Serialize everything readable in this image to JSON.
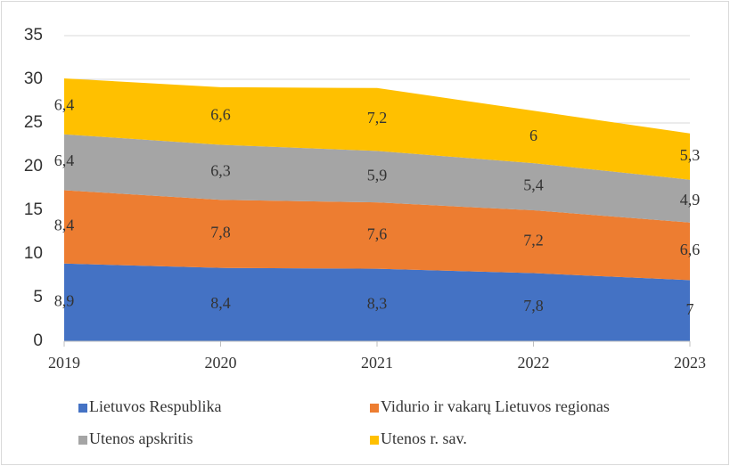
{
  "chart_data": {
    "type": "stacked-area",
    "categories": [
      "2019",
      "2020",
      "2021",
      "2022",
      "2023"
    ],
    "series": [
      {
        "name": "Lietuvos Respublika",
        "color": "#4472c4",
        "values": [
          8.9,
          8.4,
          8.3,
          7.8,
          7
        ],
        "value_labels": [
          "8,9",
          "8,4",
          "8,3",
          "7,8",
          "7"
        ]
      },
      {
        "name": "Vidurio ir vakarų Lietuvos regionas",
        "color": "#ed7d31",
        "values": [
          8.4,
          7.8,
          7.6,
          7.2,
          6.6
        ],
        "value_labels": [
          "8,4",
          "7,8",
          "7,6",
          "7,2",
          "6,6"
        ]
      },
      {
        "name": "Utenos apskritis",
        "color": "#a5a5a5",
        "values": [
          6.4,
          6.3,
          5.9,
          5.4,
          4.9
        ],
        "value_labels": [
          "6,4",
          "6,3",
          "5,9",
          "5,4",
          "4,9"
        ]
      },
      {
        "name": "Utenos r. sav.",
        "color": "#ffc000",
        "values": [
          6.4,
          6.6,
          7.2,
          6,
          5.3
        ],
        "value_labels": [
          "6,4",
          "6,6",
          "7,2",
          "6",
          "5,3"
        ]
      }
    ],
    "ylim": [
      0,
      35
    ],
    "yticks": [
      0,
      5,
      10,
      15,
      20,
      25,
      30,
      35
    ],
    "grid": true
  }
}
